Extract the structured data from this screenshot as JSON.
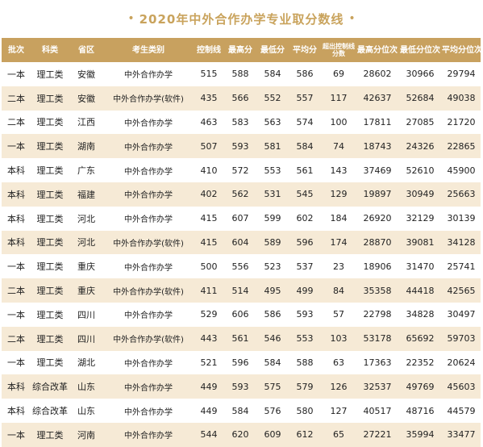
{
  "title": "2020年中外合作办学专业取分数线",
  "title_dot": "•",
  "headers": [
    "批次",
    "科类",
    "省区",
    "考生类别",
    "控制线",
    "最高分",
    "最低分",
    "平均分",
    "超出控制线分数",
    "最高分位次",
    "最低分位次",
    "平均分位次"
  ],
  "rows": [
    [
      "一本",
      "理工类",
      "安徽",
      "中外合作办学",
      "515",
      "588",
      "584",
      "586",
      "69",
      "28602",
      "30966",
      "29794"
    ],
    [
      "二本",
      "理工类",
      "安徽",
      "中外合作办学(软件)",
      "435",
      "566",
      "552",
      "557",
      "117",
      "42637",
      "52684",
      "49038"
    ],
    [
      "二本",
      "理工类",
      "江西",
      "中外合作办学",
      "463",
      "583",
      "563",
      "574",
      "100",
      "17811",
      "27085",
      "21720"
    ],
    [
      "一本",
      "理工类",
      "湖南",
      "中外合作办学",
      "507",
      "593",
      "581",
      "584",
      "74",
      "18743",
      "24326",
      "22865"
    ],
    [
      "本科",
      "理工类",
      "广东",
      "中外合作办学",
      "410",
      "572",
      "553",
      "561",
      "143",
      "37469",
      "52610",
      "45900"
    ],
    [
      "本科",
      "理工类",
      "福建",
      "中外合作办学",
      "402",
      "562",
      "531",
      "545",
      "129",
      "19897",
      "30949",
      "25663"
    ],
    [
      "本科",
      "理工类",
      "河北",
      "中外合作办学",
      "415",
      "607",
      "599",
      "602",
      "184",
      "26920",
      "32129",
      "30139"
    ],
    [
      "本科",
      "理工类",
      "河北",
      "中外合作办学(软件)",
      "415",
      "604",
      "589",
      "596",
      "174",
      "28870",
      "39081",
      "34128"
    ],
    [
      "一本",
      "理工类",
      "重庆",
      "中外合作办学",
      "500",
      "556",
      "523",
      "537",
      "23",
      "18906",
      "31470",
      "25741"
    ],
    [
      "二本",
      "理工类",
      "重庆",
      "中外合作办学(软件)",
      "411",
      "514",
      "495",
      "499",
      "84",
      "35358",
      "44418",
      "42565"
    ],
    [
      "一本",
      "理工类",
      "四川",
      "中外合作办学",
      "529",
      "606",
      "586",
      "593",
      "57",
      "22798",
      "34828",
      "30497"
    ],
    [
      "二本",
      "理工类",
      "四川",
      "中外合作办学(软件)",
      "443",
      "561",
      "546",
      "553",
      "103",
      "53178",
      "65692",
      "59703"
    ],
    [
      "一本",
      "理工类",
      "湖北",
      "中外合作办学",
      "521",
      "596",
      "584",
      "588",
      "63",
      "17363",
      "22352",
      "20624"
    ],
    [
      "本科",
      "综合改革",
      "山东",
      "中外合作办学",
      "449",
      "593",
      "575",
      "579",
      "126",
      "32537",
      "49769",
      "45603"
    ],
    [
      "本科",
      "综合改革",
      "山东",
      "中外合作办学",
      "449",
      "584",
      "576",
      "580",
      "127",
      "40517",
      "48716",
      "44579"
    ],
    [
      "一本",
      "理工类",
      "河南",
      "中外合作办学",
      "544",
      "620",
      "609",
      "612",
      "65",
      "27221",
      "35994",
      "33477"
    ]
  ]
}
